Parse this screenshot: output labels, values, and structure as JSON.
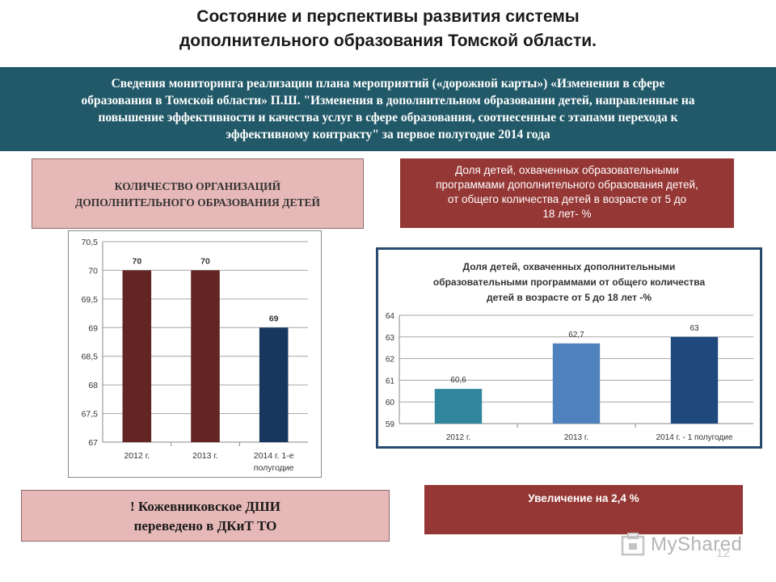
{
  "title": {
    "line1": "Состояние и   перспективы развития системы",
    "line2": "дополнительного образования Томской области."
  },
  "banner": {
    "line1": "Сведения  мониторинга реализации плана мероприятий («дорожной карты») «Изменения в     сфере",
    "line2": "образования в Томской области»  П.Ш. \"Изменения в дополнительном образовании детей, направленные на",
    "line3": "повышение эффективности и качества услуг в сфере образования, соотнесенные с этапами перехода к",
    "line4": "эффективному контракту\" за первое  полугодие  2014 года"
  },
  "left_box": {
    "line1": "КОЛИЧЕСТВО  ОРГАНИЗАЦИЙ",
    "line2": "ДОПОЛНИТЕЛЬНОГО  ОБРАЗОВАНИЯ  ДЕТЕЙ"
  },
  "right_box": {
    "line1": "Доля детей,  охваченных образовательными",
    "line2": "программами дополнительного образования  детей,",
    "line3": "от общего  количества детей  в  возрасте  от 5  до",
    "line4": "18 лет-  %"
  },
  "bottom_left": {
    "line1": "! Кожевниковское  ДШИ",
    "line2": "переведено  в  ДКиТ ТО"
  },
  "bottom_right": {
    "text": "Увеличение  на 2,4 %"
  },
  "watermark": {
    "text": "MyShared",
    "page": "12"
  },
  "colors": {
    "banner": "#215968",
    "pink_box": "#e6b8b7",
    "dark_red_box": "#953735",
    "bar_dark_red": "#632523",
    "bar_navy": "#17375e",
    "bar_teal": "#31859c",
    "bar_blue": "#4f81bd",
    "bar_dark_blue": "#1f497d"
  },
  "chart_data": [
    {
      "type": "bar",
      "categories": [
        "2012 г.",
        "2013 г.",
        "2014 г. 1-е полугодие"
      ],
      "values": [
        70,
        70,
        69
      ],
      "value_labels": [
        "70",
        "70",
        "69"
      ],
      "colors": [
        "#632523",
        "#632523",
        "#17375e"
      ],
      "ylim": [
        67,
        70.5
      ],
      "yticks": [
        "67",
        "67,5",
        "68",
        "68,5",
        "69",
        "69,5",
        "70",
        "70,5"
      ],
      "ytick_values": [
        67,
        67.5,
        68,
        68.5,
        69,
        69.5,
        70,
        70.5
      ],
      "grid": true,
      "legend": "none"
    },
    {
      "type": "bar",
      "title_line1": "Доля детей, охваченных дополнительными",
      "title_line2": "образовательными программами от общего количества",
      "title_line3": "детей в  возрасте  от  5 до 18  лет -%",
      "categories": [
        "2012 г.",
        "2013 г.",
        "2014 г. - 1 полугодие"
      ],
      "values": [
        60.6,
        62.7,
        63
      ],
      "value_labels": [
        "60,6",
        "62,7",
        "63"
      ],
      "colors": [
        "#31859c",
        "#4f81bd",
        "#1f497d"
      ],
      "ylim": [
        59,
        64
      ],
      "yticks": [
        "59",
        "60",
        "61",
        "62",
        "63",
        "64"
      ],
      "ytick_values": [
        59,
        60,
        61,
        62,
        63,
        64
      ],
      "grid": true,
      "legend": "none"
    }
  ]
}
